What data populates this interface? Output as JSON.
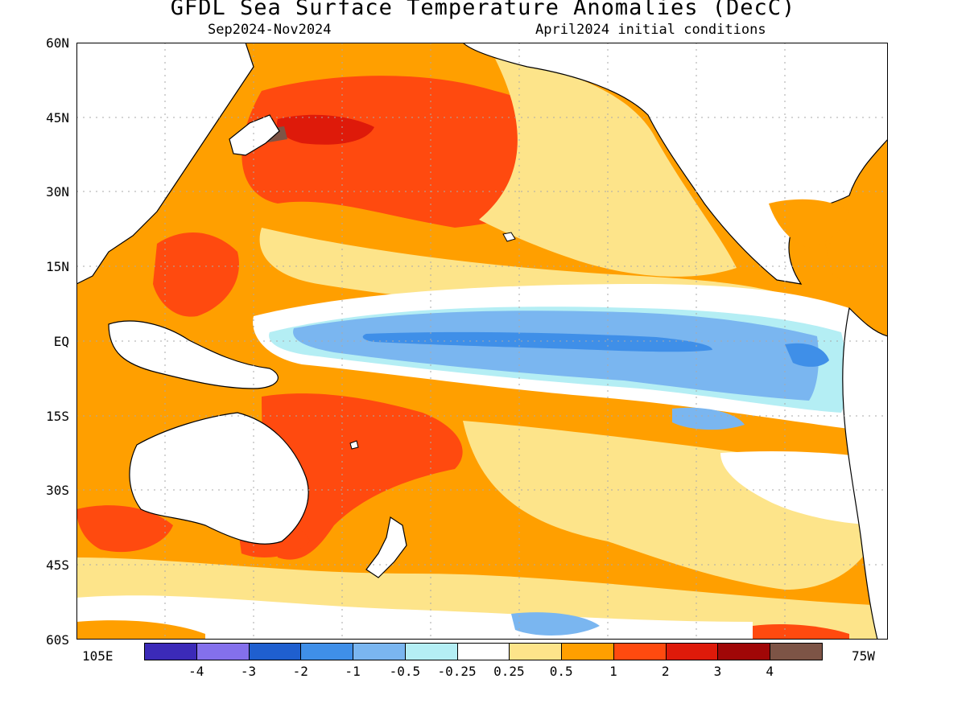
{
  "title": "GFDL Sea Surface Temperature Anomalies (DecC)",
  "subtitle_left": "Sep2024-Nov2024",
  "subtitle_right": "April2024 initial conditions",
  "y_ticks": [
    "60N",
    "45N",
    "30N",
    "15N",
    "EQ",
    "15S",
    "30S",
    "45S",
    "60S"
  ],
  "x_labels": {
    "left": "105E",
    "right": "75W"
  },
  "colorbar": {
    "labels": [
      "-4",
      "-3",
      "-2",
      "-1",
      "-0.5",
      "-0.25",
      "0.25",
      "0.5",
      "1",
      "2",
      "3",
      "4"
    ],
    "colors": [
      "#3b2ab8",
      "#8470ec",
      "#1f5fcf",
      "#3f8fe8",
      "#7ab6f0",
      "#b4eef4",
      "#ffffff",
      "#fde48a",
      "#ff9f00",
      "#ff4a0f",
      "#de1a0a",
      "#a00707",
      "#7d5446"
    ]
  },
  "map_colors": {
    "land": "#ffffff",
    "coast": "#000000",
    "grid": "#aaaaaa"
  }
}
